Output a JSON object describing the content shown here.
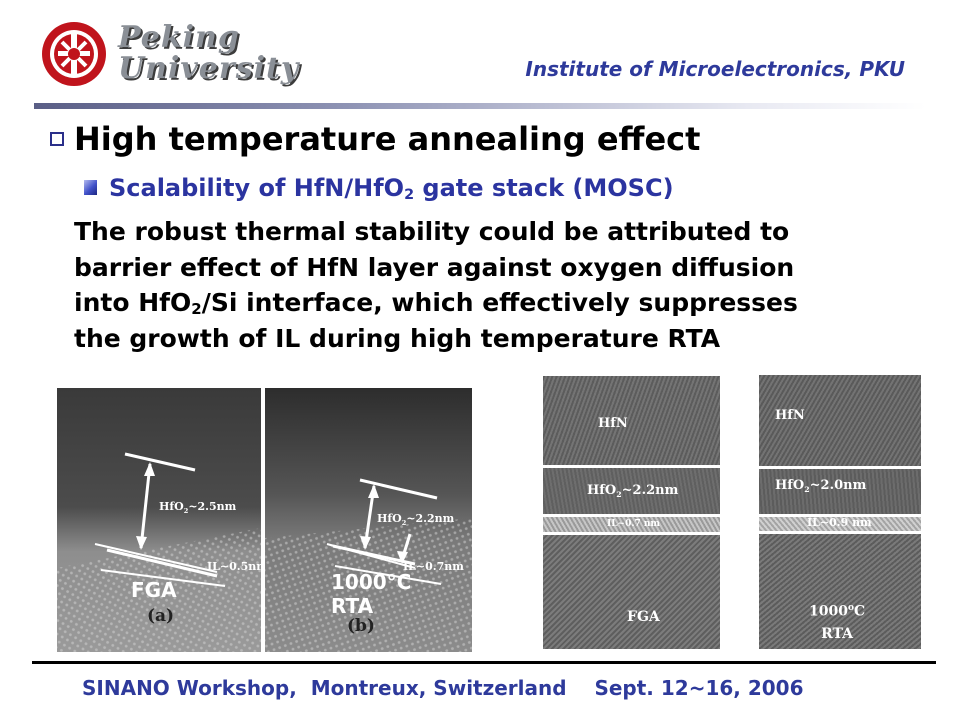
{
  "header": {
    "logo_line1": "Peking",
    "logo_line2": "University",
    "institute": "Institute of Microelectronics, PKU"
  },
  "slide": {
    "heading": "High temperature annealing effect",
    "subheading_pre": "Scalability of HfN/HfO",
    "subheading_sub": "2",
    "subheading_post": " gate stack (MOSC)",
    "body": {
      "line1": "The robust thermal stability could be attributed to",
      "line2": "barrier effect of HfN layer against oxygen diffusion",
      "line3_pre": "into HfO",
      "line3_sub": "2",
      "line3_post": "/Si interface, which effectively suppresses",
      "line4": "the growth of IL during high temperature RTA"
    }
  },
  "images": {
    "a": {
      "hfo2_pre": "HfO",
      "hfo2_sub": "2",
      "hfo2_post": "~2.5nm",
      "il": "IL~0.5nm",
      "anneal": "FGA",
      "caption": "(a)"
    },
    "b": {
      "hfo2_pre": "HfO",
      "hfo2_sub": "2",
      "hfo2_post": "~2.2nm",
      "il": "IL~0.7nm",
      "anneal_line1": "1000°C",
      "anneal_line2": "RTA",
      "caption": "(b)"
    },
    "c": {
      "top": "HfN",
      "hfo2_pre": "HfO",
      "hfo2_sub": "2",
      "hfo2_post": "~2.2nm",
      "il": "IL~0.7 nm",
      "anneal": "FGA"
    },
    "d": {
      "top": "HfN",
      "hfo2_pre": "HfO",
      "hfo2_sub": "2",
      "hfo2_post": "~2.0nm",
      "il": "IL~0.9 nm",
      "anneal_line1_pre": "1000",
      "anneal_line1_sup": "o",
      "anneal_line1_post": "C",
      "anneal_line2": "RTA"
    }
  },
  "footer": {
    "event": "SINANO Workshop,  Montreux, Switzerland",
    "date": "Sept. 12~16, 2006"
  },
  "colors": {
    "accent": "#2e3a9b",
    "logo_red": "#c0141c"
  }
}
